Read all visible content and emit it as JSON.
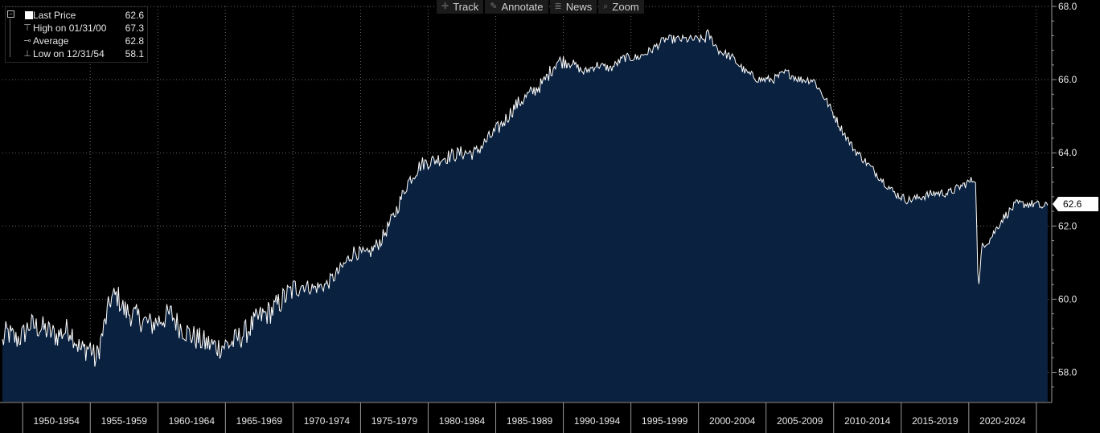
{
  "legend": {
    "items": [
      {
        "label": "Last Price",
        "value": "62.6"
      },
      {
        "label": "High on 01/31/00",
        "value": "67.3"
      },
      {
        "label": "Average",
        "value": "62.8"
      },
      {
        "label": "Low on 12/31/54",
        "value": "58.1"
      }
    ]
  },
  "toolbar": {
    "track": "Track",
    "annotate": "Annotate",
    "news": "News",
    "zoom": "Zoom"
  },
  "colors": {
    "background": "#000000",
    "fill": "#0a2240",
    "line": "#ffffff",
    "grid": "#6a6a6a"
  },
  "chart_data": {
    "type": "area",
    "x_start_year": 1948.0,
    "x_end_year": 2025.4,
    "ylim": [
      57.2,
      68.0
    ],
    "yticks": [
      "58.0",
      "60.0",
      "62.0",
      "64.0",
      "66.0",
      "68.0"
    ],
    "xtick_labels": [
      "1950-1954",
      "1955-1959",
      "1960-1964",
      "1965-1969",
      "1970-1974",
      "1975-1979",
      "1980-1984",
      "1985-1989",
      "1990-1994",
      "1995-1999",
      "2000-2004",
      "2005-2009",
      "2010-2014",
      "2015-2019",
      "2020-2024"
    ],
    "last_value_label": "62.6",
    "grid": true,
    "anchors": [
      [
        1948.0,
        58.8
      ],
      [
        1948.3,
        59.1
      ],
      [
        1949.0,
        58.9
      ],
      [
        1949.5,
        59.0
      ],
      [
        1950.0,
        59.3
      ],
      [
        1951.0,
        59.2
      ],
      [
        1952.0,
        59.0
      ],
      [
        1953.0,
        59.2
      ],
      [
        1953.8,
        58.6
      ],
      [
        1954.5,
        58.7
      ],
      [
        1954.9,
        58.3
      ],
      [
        1955.5,
        59.2
      ],
      [
        1956.0,
        60.0
      ],
      [
        1956.5,
        60.1
      ],
      [
        1957.0,
        59.7
      ],
      [
        1958.0,
        59.5
      ],
      [
        1959.0,
        59.3
      ],
      [
        1959.5,
        59.4
      ],
      [
        1960.0,
        59.5
      ],
      [
        1960.5,
        59.6
      ],
      [
        1961.0,
        59.3
      ],
      [
        1962.0,
        59.0
      ],
      [
        1963.0,
        58.8
      ],
      [
        1964.0,
        58.7
      ],
      [
        1965.0,
        58.8
      ],
      [
        1966.0,
        59.1
      ],
      [
        1967.0,
        59.5
      ],
      [
        1968.0,
        59.7
      ],
      [
        1969.0,
        60.1
      ],
      [
        1970.0,
        60.4
      ],
      [
        1971.0,
        60.3
      ],
      [
        1972.0,
        60.4
      ],
      [
        1973.0,
        60.8
      ],
      [
        1974.0,
        61.3
      ],
      [
        1975.0,
        61.2
      ],
      [
        1976.0,
        61.6
      ],
      [
        1977.0,
        62.3
      ],
      [
        1978.0,
        63.2
      ],
      [
        1979.0,
        63.7
      ],
      [
        1980.0,
        63.8
      ],
      [
        1981.0,
        63.9
      ],
      [
        1982.0,
        64.0
      ],
      [
        1983.0,
        64.0
      ],
      [
        1984.0,
        64.4
      ],
      [
        1985.0,
        64.8
      ],
      [
        1986.0,
        65.3
      ],
      [
        1987.0,
        65.6
      ],
      [
        1988.0,
        65.9
      ],
      [
        1989.0,
        66.5
      ],
      [
        1990.0,
        66.5
      ],
      [
        1991.0,
        66.2
      ],
      [
        1992.0,
        66.4
      ],
      [
        1993.0,
        66.3
      ],
      [
        1994.0,
        66.6
      ],
      [
        1995.0,
        66.6
      ],
      [
        1996.0,
        66.8
      ],
      [
        1997.0,
        67.1
      ],
      [
        1998.0,
        67.1
      ],
      [
        1999.0,
        67.1
      ],
      [
        2000.0,
        67.1
      ],
      [
        2000.1,
        67.3
      ],
      [
        2001.0,
        66.8
      ],
      [
        2002.0,
        66.6
      ],
      [
        2003.0,
        66.2
      ],
      [
        2004.0,
        66.0
      ],
      [
        2005.0,
        66.0
      ],
      [
        2006.0,
        66.2
      ],
      [
        2007.0,
        66.0
      ],
      [
        2008.0,
        66.0
      ],
      [
        2009.0,
        65.4
      ],
      [
        2010.0,
        64.7
      ],
      [
        2011.0,
        64.1
      ],
      [
        2012.0,
        63.7
      ],
      [
        2013.0,
        63.3
      ],
      [
        2014.0,
        62.9
      ],
      [
        2015.0,
        62.7
      ],
      [
        2016.0,
        62.8
      ],
      [
        2017.0,
        62.9
      ],
      [
        2018.0,
        62.9
      ],
      [
        2019.0,
        63.1
      ],
      [
        2020.0,
        63.3
      ],
      [
        2020.2,
        60.2
      ],
      [
        2020.5,
        61.5
      ],
      [
        2021.0,
        61.6
      ],
      [
        2022.0,
        62.2
      ],
      [
        2023.0,
        62.6
      ],
      [
        2024.0,
        62.6
      ],
      [
        2024.5,
        62.6
      ],
      [
        2025.0,
        62.5
      ],
      [
        2025.4,
        62.6
      ]
    ]
  }
}
